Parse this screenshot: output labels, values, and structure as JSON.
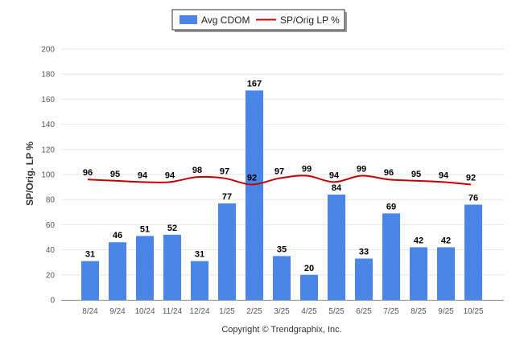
{
  "chart_data": {
    "type": "bar",
    "categories": [
      "8/24",
      "9/24",
      "10/24",
      "11/24",
      "12/24",
      "1/25",
      "2/25",
      "3/25",
      "4/25",
      "5/25",
      "6/25",
      "7/25",
      "8/25",
      "9/25",
      "10/25"
    ],
    "series": [
      {
        "name": "Avg CDOM",
        "type": "bar",
        "color": "#4a86e8",
        "values": [
          31,
          46,
          51,
          52,
          31,
          77,
          167,
          35,
          20,
          84,
          33,
          69,
          42,
          42,
          76
        ]
      },
      {
        "name": "SP/Orig LP %",
        "type": "line",
        "color": "#c00000",
        "values": [
          96,
          95,
          94,
          94,
          98,
          97,
          92,
          97,
          99,
          94,
          99,
          96,
          95,
          94,
          92
        ]
      }
    ],
    "ylabel": "SP/Orig. LP %",
    "xlabel": "",
    "ylim": [
      0,
      200
    ],
    "yticks": [
      0,
      20,
      40,
      60,
      80,
      100,
      120,
      140,
      160,
      180,
      200
    ],
    "grid": true,
    "legend_position": "top-center"
  },
  "footer": {
    "credit": "Copyright © Trendgraphix, Inc."
  }
}
